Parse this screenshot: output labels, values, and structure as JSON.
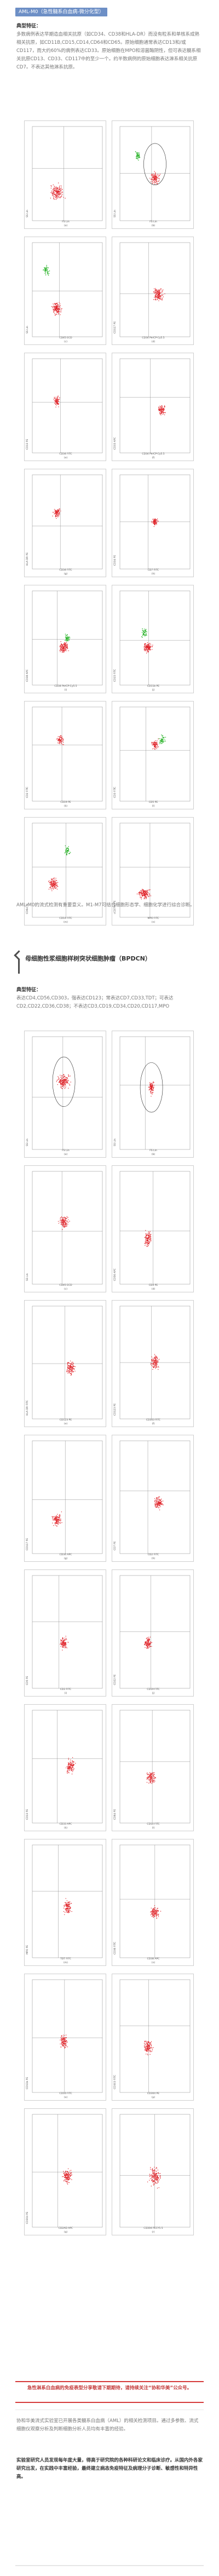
{
  "header": {
    "badge": "AML-M0（急性髓系白血病-微分化型）"
  },
  "section1": {
    "typical_label": "典型特征：",
    "paragraph": "多数病例表达早期造血相关抗原（如CD34、CD38和HLA-DR）而没有粒系和单核系成熟相关抗原，如CD11B,CD15,CD14,CD64和CD65。原始细胞通常表达CD13和/或CD117，而大约60%的病例表达CD33。原始细胞在MPO和溶菌酶阴性，但可表达髓系相关抗原CD13、CD33、CD117中的至少一个。约半数病例的原始细胞表达淋系相关抗原CD7。不表达其他淋系抗原。",
    "caption": "AML-M0的流式检测有重要意义。M1-M7可结合细胞形态学、细胞化学进行综合诊断。"
  },
  "figure1": {
    "panels": [
      {
        "label": "(a)",
        "x_label": "FS Lin",
        "y_label": "SS Lin"
      },
      {
        "label": "(b)",
        "x_label": "FS Lin",
        "y_label": "SS Lin"
      },
      {
        "label": "(c)",
        "x_label": "CD45 ECD",
        "y_label": "SS Lin"
      },
      {
        "label": "(d)",
        "x_label": "CD34 PerCP-Cy5.5",
        "y_label": "CD117 PE"
      },
      {
        "label": "(e)",
        "x_label": "CD34 FITC",
        "y_label": "CD13 PE"
      },
      {
        "label": "(f)",
        "x_label": "CD34 PerCP-Cy5.5",
        "y_label": "CD33 APC"
      },
      {
        "label": "(g)",
        "x_label": "CD34 FITC",
        "y_label": "HLA-DR PE"
      },
      {
        "label": "(h)",
        "x_label": "CD7 FITC",
        "y_label": "CD34 PE"
      },
      {
        "label": "(i)",
        "x_label": "CD34 PerCP-Cy5.5",
        "y_label": "CD38 APC"
      },
      {
        "label": "(j)",
        "x_label": "CD11b PE",
        "y_label": "CD15 FITC"
      },
      {
        "label": "(k)",
        "x_label": "CD19 PE",
        "y_label": "CD2 FITC"
      },
      {
        "label": "(l)",
        "x_label": "CD5 PE",
        "y_label": "CD3 FITC"
      },
      {
        "label": "(m)",
        "x_label": "CD14 FITC",
        "y_label": "CD64 PE"
      },
      {
        "label": "(n)",
        "x_label": "MPO FITC",
        "y_label": "cCD79a PE"
      }
    ]
  },
  "section2": {
    "heading": "母细胞性浆细胞样树突状细胞肿瘤（BPDCN）",
    "typical_label": "典型特征：",
    "paragraph": "表达CD4,CD56,CD303，强表达CD123；常表达CD7,CD33,TDT；可表达CD2,CD22,CD36,CD38；不表达CD3,CD19,CD34,CD20,CD117,MPO"
  },
  "figure2": {
    "panels": [
      {
        "label": "(a)",
        "x_label": "FS Lin",
        "y_label": "SS Lin"
      },
      {
        "label": "(b)",
        "x_label": "FS Lin",
        "y_label": "SS Lin"
      },
      {
        "label": "(c)",
        "x_label": "CD45 ECD",
        "y_label": "SS Lin"
      },
      {
        "label": "(d)",
        "x_label": "CD4 PE",
        "y_label": "CD56 APC"
      },
      {
        "label": "(e)",
        "x_label": "CD123 PE",
        "y_label": "HLA-DR FITC"
      },
      {
        "label": "(f)",
        "x_label": "CD303 FITC",
        "y_label": "CD123 PE"
      },
      {
        "label": "(g)",
        "x_label": "CD34 APC",
        "y_label": "CD117 PE"
      },
      {
        "label": "(h)",
        "x_label": "CD2 FITC",
        "y_label": "CD7 PE"
      },
      {
        "label": "(i)",
        "x_label": "CD3 FITC",
        "y_label": "CD5 PE"
      },
      {
        "label": "(j)",
        "x_label": "CD19 FITC",
        "y_label": "CD22 PE"
      },
      {
        "label": "(k)",
        "x_label": "CD33 APC",
        "y_label": "CD13 PE"
      },
      {
        "label": "(l)",
        "x_label": "CD14 FITC",
        "y_label": "CD64 PE"
      },
      {
        "label": "(m)",
        "x_label": "TDT FITC",
        "y_label": "MPO PE"
      },
      {
        "label": "(n)",
        "x_label": "CD38 APC",
        "y_label": "CD36 FITC"
      },
      {
        "label": "(o)",
        "x_label": "CD16 FITC",
        "y_label": "CD11b PE"
      },
      {
        "label": "(p)",
        "x_label": "CD304 PE",
        "y_label": "CD303 FITC"
      },
      {
        "label": "(q)",
        "x_label": "CD2AD APC",
        "y_label": "CD304 PE"
      },
      {
        "label": "(r)",
        "x_label": "CD304 PECY5.5",
        "y_label": ""
      }
    ]
  },
  "highlight": {
    "text": "急性淋系白血病的免疫表型分享敬请下期期待，请持续关注“协和华美”公众号。"
  },
  "closing": {
    "p1": "协和华美流式实验室已开展各类髓系白血病（AML）的相关检测项目。通过多参数、流式细胞仪观察分析及判断细胞分析人员均有丰富的经验。",
    "p2": "实验室研究人员发现每年度大量，得高于研究院的各种科研论文和临床诊疗。从国内外各家研究出发，在实践中丰富经验，最终建立病态免疫特征及病理分子诊断、敏感性和特异性高。"
  },
  "colors": {
    "badge_bg": "#6d8fc6",
    "dot_red": "#e0242a",
    "dot_green": "#2fb52f",
    "highlight": "#d53a3a"
  }
}
